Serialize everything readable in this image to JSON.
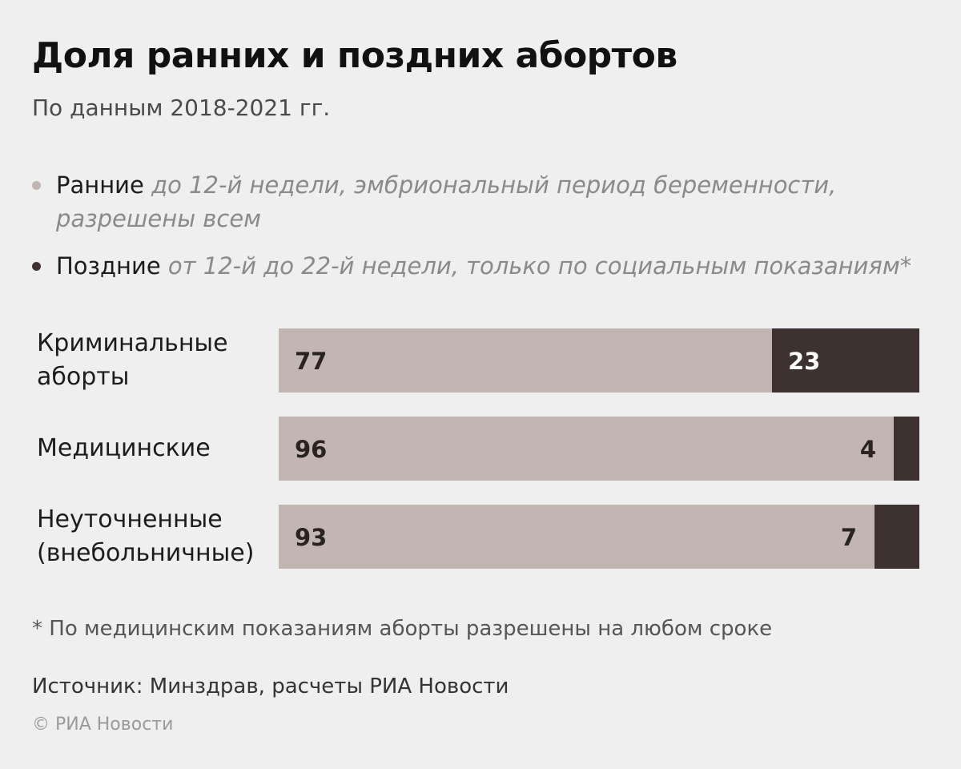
{
  "title": "Доля ранних и поздних абортов",
  "subtitle": "По данным 2018-2021 гг.",
  "legend": [
    {
      "name": "Ранние",
      "description": "до 12-й недели, эмбриональный период беременности, разрешены всем",
      "color": "#c2b5b2"
    },
    {
      "name": "Поздние",
      "description": "от 12-й до 22-й недели, только по социальным показаниям*",
      "color": "#3e3230"
    }
  ],
  "chart_data": {
    "type": "bar",
    "orientation": "horizontal",
    "stacked": true,
    "categories": [
      "Криминальные аборты",
      "Медицинские",
      "Неуточненные (внебольничные)"
    ],
    "series": [
      {
        "name": "Ранние",
        "values": [
          77,
          96,
          93
        ],
        "color": "#c2b5b2",
        "label_color": "#2b2322"
      },
      {
        "name": "Поздние",
        "values": [
          23,
          4,
          7
        ],
        "color": "#3e3230",
        "label_color": "#ffffff"
      }
    ],
    "xlim": [
      0,
      100
    ],
    "grid": false,
    "legend_position": "top"
  },
  "footnote": "* По медицинским показаниям аборты разрешены на любом сроке",
  "source": "Источник: Минздрав, расчеты РИА Новости",
  "copyright": "© РИА Новости"
}
